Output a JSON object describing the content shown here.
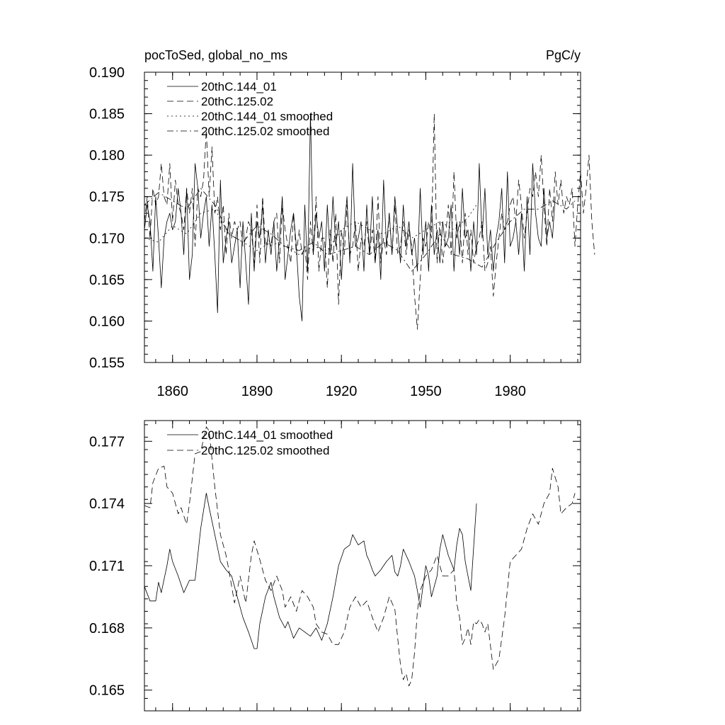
{
  "chart_data": [
    {
      "type": "line",
      "title": "pocToSed, global_no_ms",
      "units": "PgC/y",
      "xlim": [
        1850,
        2005
      ],
      "ylim": [
        0.155,
        0.19
      ],
      "xticks": [
        1860,
        1890,
        1920,
        1950,
        1980
      ],
      "xtick_labels": [
        "1860",
        "1890",
        "1920",
        "1950",
        "1980"
      ],
      "yticks": [
        0.155,
        0.16,
        0.165,
        0.17,
        0.175,
        0.18,
        0.185,
        0.19
      ],
      "ytick_labels": [
        "0.155",
        "0.160",
        "0.165",
        "0.170",
        "0.175",
        "0.180",
        "0.185",
        "0.190"
      ],
      "legend_position": "top-left",
      "series": [
        {
          "name": "20thC.144_01",
          "style": "solid",
          "x_start": 1850,
          "values": [
            0.171,
            0.174,
            0.172,
            0.166,
            0.175,
            0.17,
            0.164,
            0.17,
            0.172,
            0.173,
            0.171,
            0.172,
            0.176,
            0.173,
            0.168,
            0.176,
            0.165,
            0.168,
            0.179,
            0.176,
            0.17,
            0.173,
            0.175,
            0.169,
            0.174,
            0.168,
            0.161,
            0.177,
            0.167,
            0.17,
            0.172,
            0.167,
            0.169,
            0.171,
            0.164,
            0.172,
            0.167,
            0.162,
            0.173,
            0.166,
            0.172,
            0.17,
            0.174,
            0.167,
            0.171,
            0.168,
            0.172,
            0.166,
            0.17,
            0.175,
            0.165,
            0.168,
            0.171,
            0.173,
            0.169,
            0.163,
            0.16,
            0.174,
            0.166,
            0.185,
            0.168,
            0.173,
            0.17,
            0.172,
            0.166,
            0.174,
            0.168,
            0.175,
            0.169,
            0.172,
            0.165,
            0.171,
            0.175,
            0.167,
            0.179,
            0.169,
            0.17,
            0.172,
            0.166,
            0.174,
            0.168,
            0.175,
            0.167,
            0.171,
            0.165,
            0.177,
            0.169,
            0.173,
            0.168,
            0.175,
            0.171,
            0.167,
            0.174,
            0.169,
            0.172,
            0.168,
            0.17,
            0.166,
            0.176,
            0.168,
            0.172,
            0.166,
            0.174,
            0.168,
            0.171,
            0.167,
            0.172,
            0.169,
            0.17,
            0.174,
            0.166,
            0.172,
            0.168,
            0.176,
            0.17,
            0.171,
            0.166,
            0.172,
            0.168,
            0.179,
            0.17,
            0.176,
            0.168,
            0.171,
            0.166,
            0.17,
            0.172,
            0.176,
            0.167,
            0.178,
            0.169,
            0.17,
            0.172,
            0.168,
            0.173,
            0.166,
            0.175,
            0.168,
            0.179,
            0.173,
            0.17,
            0.169,
            0.176,
            0.17,
            0.172,
            0.17,
            0.175
          ]
        },
        {
          "name": "20thC.125.02",
          "style": "dashed",
          "x_start": 1850,
          "values": [
            0.172,
            0.175,
            0.17,
            0.176,
            0.174,
            0.175,
            0.179,
            0.175,
            0.174,
            0.179,
            0.172,
            0.177,
            0.174,
            0.173,
            0.171,
            0.176,
            0.173,
            0.176,
            0.169,
            0.176,
            0.175,
            0.177,
            0.183,
            0.175,
            0.181,
            0.173,
            0.175,
            0.171,
            0.174,
            0.168,
            0.173,
            0.17,
            0.172,
            0.171,
            0.172,
            0.169,
            0.17,
            0.172,
            0.171,
            0.167,
            0.174,
            0.167,
            0.175,
            0.169,
            0.17,
            0.169,
            0.172,
            0.173,
            0.167,
            0.174,
            0.171,
            0.169,
            0.167,
            0.173,
            0.168,
            0.171,
            0.168,
            0.169,
            0.165,
            0.172,
            0.168,
            0.175,
            0.166,
            0.17,
            0.17,
            0.164,
            0.171,
            0.167,
            0.173,
            0.162,
            0.171,
            0.168,
            0.174,
            0.168,
            0.169,
            0.172,
            0.166,
            0.17,
            0.169,
            0.172,
            0.168,
            0.171,
            0.167,
            0.175,
            0.167,
            0.17,
            0.168,
            0.173,
            0.168,
            0.174,
            0.168,
            0.169,
            0.172,
            0.168,
            0.171,
            0.169,
            0.163,
            0.159,
            0.165,
            0.17,
            0.169,
            0.172,
            0.17,
            0.185,
            0.167,
            0.172,
            0.167,
            0.17,
            0.174,
            0.168,
            0.178,
            0.17,
            0.172,
            0.167,
            0.173,
            0.168,
            0.171,
            0.167,
            0.169,
            0.17,
            0.172,
            0.166,
            0.167,
            0.169,
            0.163,
            0.167,
            0.17,
            0.173,
            0.171,
            0.172,
            0.174,
            0.175,
            0.172,
            0.177,
            0.174,
            0.17,
            0.173,
            0.176,
            0.175,
            0.178,
            0.175,
            0.18,
            0.174,
            0.169,
            0.176,
            0.172,
            0.178,
            0.174,
            0.177,
            0.173,
            0.175,
            0.174,
            0.176,
            0.169,
            0.174,
            0.178,
            0.173,
            0.176,
            0.18,
            0.172,
            0.168
          ]
        },
        {
          "name": "20thC.144_01 smoothed",
          "style": "dotted",
          "x": [
            1850,
            1855,
            1860,
            1865,
            1870,
            1875,
            1880,
            1885,
            1890,
            1895,
            1900,
            1905,
            1910,
            1915,
            1920,
            1925,
            1930,
            1935,
            1940,
            1945,
            1950,
            1955,
            1960,
            1965,
            1968
          ],
          "values": [
            0.17,
            0.1695,
            0.1715,
            0.1705,
            0.173,
            0.1735,
            0.1705,
            0.1695,
            0.1685,
            0.1695,
            0.169,
            0.168,
            0.169,
            0.1685,
            0.171,
            0.172,
            0.171,
            0.1705,
            0.1715,
            0.17,
            0.171,
            0.172,
            0.171,
            0.1725,
            0.174
          ]
        },
        {
          "name": "20thC.125.02 smoothed",
          "style": "dash-dot",
          "x": [
            1850,
            1855,
            1860,
            1865,
            1870,
            1875,
            1880,
            1885,
            1890,
            1895,
            1900,
            1905,
            1910,
            1915,
            1920,
            1925,
            1930,
            1935,
            1940,
            1945,
            1950,
            1955,
            1960,
            1965,
            1970,
            1975,
            1980,
            1985,
            1990,
            1995,
            2000,
            2003
          ],
          "values": [
            0.174,
            0.1755,
            0.1745,
            0.1735,
            0.176,
            0.174,
            0.1705,
            0.1695,
            0.1715,
            0.1705,
            0.169,
            0.1685,
            0.1695,
            0.168,
            0.1685,
            0.169,
            0.168,
            0.1695,
            0.1685,
            0.166,
            0.168,
            0.1705,
            0.168,
            0.1675,
            0.1665,
            0.1695,
            0.172,
            0.1735,
            0.1735,
            0.1745,
            0.1735,
            0.1745
          ]
        }
      ]
    },
    {
      "type": "line",
      "xlim": [
        1850,
        2005
      ],
      "ylim": [
        0.164,
        0.178
      ],
      "xticks": [
        1860,
        1890,
        1920,
        1950,
        1980
      ],
      "yticks": [
        0.165,
        0.168,
        0.171,
        0.174,
        0.177
      ],
      "ytick_labels": [
        "0.165",
        "0.168",
        "0.171",
        "0.174",
        "0.177"
      ],
      "legend_position": "top-left",
      "series": [
        {
          "name": "20thC.144_01 smoothed",
          "style": "solid",
          "x": [
            1850,
            1852,
            1854,
            1855,
            1856,
            1858,
            1859,
            1860,
            1862,
            1864,
            1865,
            1866,
            1868,
            1870,
            1872,
            1873,
            1875,
            1877,
            1879,
            1881,
            1883,
            1885,
            1887,
            1889,
            1890,
            1891,
            1893,
            1895,
            1896,
            1898,
            1900,
            1901,
            1903,
            1905,
            1907,
            1909,
            1911,
            1913,
            1915,
            1917,
            1919,
            1921,
            1923,
            1924,
            1926,
            1928,
            1929,
            1930,
            1931,
            1932,
            1934,
            1935,
            1936,
            1938,
            1939,
            1940,
            1941,
            1942,
            1944,
            1946,
            1947,
            1948,
            1949,
            1950,
            1951,
            1952,
            1954,
            1955,
            1956,
            1958,
            1960,
            1961,
            1962,
            1963,
            1964,
            1965,
            1966,
            1968
          ],
          "values": [
            0.17,
            0.1693,
            0.1693,
            0.1702,
            0.1697,
            0.171,
            0.1718,
            0.1712,
            0.1705,
            0.1697,
            0.17,
            0.1703,
            0.1703,
            0.1728,
            0.1745,
            0.1738,
            0.1725,
            0.1712,
            0.1708,
            0.1705,
            0.1695,
            0.1685,
            0.1678,
            0.167,
            0.167,
            0.1682,
            0.1695,
            0.1702,
            0.1695,
            0.1685,
            0.168,
            0.1683,
            0.1675,
            0.168,
            0.1678,
            0.1676,
            0.168,
            0.1674,
            0.1682,
            0.1695,
            0.171,
            0.1718,
            0.172,
            0.1725,
            0.172,
            0.1722,
            0.1715,
            0.1712,
            0.1708,
            0.1705,
            0.1708,
            0.171,
            0.1712,
            0.1715,
            0.1707,
            0.1705,
            0.171,
            0.1718,
            0.1712,
            0.1705,
            0.1698,
            0.169,
            0.17,
            0.171,
            0.1705,
            0.1695,
            0.1705,
            0.1718,
            0.1725,
            0.1715,
            0.1708,
            0.172,
            0.1728,
            0.1725,
            0.1712,
            0.1705,
            0.1698,
            0.174
          ]
        },
        {
          "name": "20thC.125.02 smoothed",
          "style": "dashed",
          "x": [
            1850,
            1852,
            1853,
            1855,
            1857,
            1858,
            1860,
            1862,
            1863,
            1865,
            1866,
            1868,
            1870,
            1872,
            1873,
            1875,
            1877,
            1879,
            1880,
            1882,
            1884,
            1886,
            1888,
            1889,
            1891,
            1893,
            1895,
            1897,
            1899,
            1900,
            1902,
            1904,
            1906,
            1908,
            1910,
            1911,
            1913,
            1915,
            1917,
            1919,
            1921,
            1923,
            1925,
            1927,
            1929,
            1931,
            1933,
            1935,
            1937,
            1939,
            1940,
            1941,
            1942,
            1943,
            1944,
            1945,
            1946,
            1947,
            1948,
            1950,
            1952,
            1954,
            1956,
            1958,
            1960,
            1961,
            1962,
            1963,
            1964,
            1965,
            1966,
            1967,
            1968,
            1969,
            1970,
            1971,
            1972,
            1974,
            1976,
            1978,
            1980,
            1982,
            1984,
            1986,
            1988,
            1990,
            1992,
            1994,
            1995,
            1997,
            1998,
            2000,
            2002,
            2003
          ],
          "values": [
            0.1739,
            0.1738,
            0.175,
            0.1757,
            0.1758,
            0.1748,
            0.1745,
            0.1735,
            0.1738,
            0.173,
            0.174,
            0.1764,
            0.1765,
            0.1777,
            0.1775,
            0.1748,
            0.1725,
            0.1715,
            0.1708,
            0.1692,
            0.1705,
            0.1692,
            0.1715,
            0.1722,
            0.1713,
            0.1703,
            0.1698,
            0.1705,
            0.1698,
            0.169,
            0.1695,
            0.1688,
            0.1698,
            0.1695,
            0.169,
            0.1682,
            0.1678,
            0.1677,
            0.1672,
            0.1672,
            0.1678,
            0.169,
            0.1695,
            0.169,
            0.1693,
            0.1685,
            0.1678,
            0.1685,
            0.1695,
            0.1689,
            0.1675,
            0.1662,
            0.1655,
            0.1658,
            0.1652,
            0.1655,
            0.1668,
            0.1688,
            0.1698,
            0.1705,
            0.1708,
            0.1715,
            0.1705,
            0.1705,
            0.1708,
            0.1692,
            0.1685,
            0.1672,
            0.1675,
            0.168,
            0.1672,
            0.1683,
            0.1682,
            0.1684,
            0.1682,
            0.1678,
            0.1682,
            0.166,
            0.1665,
            0.1685,
            0.1712,
            0.1715,
            0.1718,
            0.1728,
            0.1735,
            0.173,
            0.174,
            0.1745,
            0.1757,
            0.1748,
            0.1735,
            0.1738,
            0.174,
            0.1745
          ]
        }
      ]
    }
  ]
}
